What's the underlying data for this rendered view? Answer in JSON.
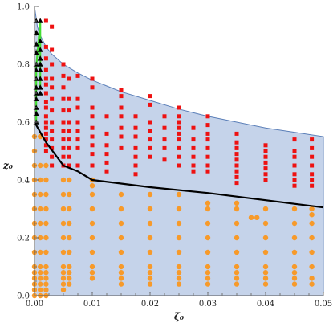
{
  "chart_data": {
    "type": "scatter",
    "title": "",
    "xlabel": "ζ₀",
    "ylabel": "z₀",
    "xlim": [
      0,
      0.05
    ],
    "ylim": [
      0,
      1
    ],
    "grid": false,
    "x_ticks": [
      "0.00",
      "0.01",
      "0.02",
      "0.03",
      "0.04",
      "0.05"
    ],
    "y_ticks": [
      "0.0",
      "0.2",
      "0.4",
      "0.6",
      "0.8",
      "1.0"
    ],
    "colors": {
      "region_fill": "#c5d3ea",
      "region_edge": "#5b7fb8",
      "red_squares": "#ee1111",
      "orange_circles": "#f79a2a",
      "black_triangles": "#000000",
      "black_curve": "#000000",
      "green_line": "#44dd33"
    },
    "region_upper_boundary": {
      "x": [
        0,
        0.0005,
        0.001,
        0.002,
        0.003,
        0.005,
        0.0075,
        0.01,
        0.0125,
        0.015,
        0.02,
        0.025,
        0.03,
        0.035,
        0.04,
        0.045,
        0.05
      ],
      "y": [
        1.0,
        0.93,
        0.9,
        0.86,
        0.835,
        0.8,
        0.77,
        0.745,
        0.725,
        0.705,
        0.675,
        0.645,
        0.62,
        0.6,
        0.58,
        0.565,
        0.55
      ]
    },
    "black_curve": {
      "x": [
        0,
        0.002,
        0.005,
        0.0075,
        0.01,
        0.02,
        0.03,
        0.04,
        0.05
      ],
      "y": [
        0.6,
        0.53,
        0.45,
        0.43,
        0.4,
        0.375,
        0.355,
        0.33,
        0.305
      ]
    },
    "green_line": {
      "x": [
        0.0003,
        0.0003,
        0.001,
        0.001
      ],
      "y": [
        0.6,
        0.79,
        0.95,
        0.72
      ]
    },
    "series": [
      {
        "name": "",
        "marker": "triangle",
        "color": "#000000",
        "x": [
          0.0003,
          0.0003,
          0.0003,
          0.0003,
          0.0003,
          0.0003,
          0.0003,
          0.0003,
          0.0003,
          0.0003,
          0.0003,
          0.0003,
          0.0003,
          0.001,
          0.001,
          0.001,
          0.001,
          0.001,
          0.001,
          0.001,
          0.001,
          0.001
        ],
        "y": [
          0.6,
          0.63,
          0.65,
          0.68,
          0.7,
          0.72,
          0.75,
          0.78,
          0.8,
          0.84,
          0.87,
          0.91,
          0.95,
          0.7,
          0.72,
          0.75,
          0.78,
          0.8,
          0.82,
          0.85,
          0.88,
          0.95
        ]
      },
      {
        "name": "",
        "marker": "square",
        "color": "#ee1111",
        "x": [
          0.002,
          0.002,
          0.002,
          0.002,
          0.002,
          0.002,
          0.002,
          0.002,
          0.002,
          0.002,
          0.002,
          0.002,
          0.002,
          0.002,
          0.002,
          0.002,
          0.003,
          0.003,
          0.003,
          0.003,
          0.003,
          0.003,
          0.003,
          0.003,
          0.003,
          0.003,
          0.003,
          0.003,
          0.003,
          0.005,
          0.005,
          0.005,
          0.005,
          0.005,
          0.005,
          0.005,
          0.005,
          0.005,
          0.005,
          0.005,
          0.006,
          0.006,
          0.006,
          0.006,
          0.006,
          0.006,
          0.006,
          0.006,
          0.006,
          0.0075,
          0.0075,
          0.0075,
          0.0075,
          0.0075,
          0.0075,
          0.0075,
          0.0075,
          0.01,
          0.01,
          0.01,
          0.01,
          0.01,
          0.01,
          0.01,
          0.01,
          0.01,
          0.0125,
          0.0125,
          0.0125,
          0.0125,
          0.0125,
          0.0125,
          0.015,
          0.015,
          0.015,
          0.015,
          0.015,
          0.015,
          0.015,
          0.0175,
          0.0175,
          0.0175,
          0.0175,
          0.0175,
          0.0175,
          0.0175,
          0.02,
          0.02,
          0.02,
          0.02,
          0.02,
          0.02,
          0.02,
          0.0225,
          0.0225,
          0.0225,
          0.0225,
          0.0225,
          0.025,
          0.025,
          0.025,
          0.025,
          0.025,
          0.025,
          0.025,
          0.025,
          0.025,
          0.0275,
          0.0275,
          0.0275,
          0.0275,
          0.0275,
          0.0275,
          0.03,
          0.03,
          0.03,
          0.03,
          0.03,
          0.03,
          0.03,
          0.03,
          0.035,
          0.035,
          0.035,
          0.035,
          0.035,
          0.035,
          0.035,
          0.035,
          0.035,
          0.04,
          0.04,
          0.04,
          0.04,
          0.04,
          0.04,
          0.04,
          0.045,
          0.045,
          0.045,
          0.045,
          0.045,
          0.045,
          0.045,
          0.048,
          0.048,
          0.048,
          0.048,
          0.048,
          0.048,
          0.048
        ],
        "y": [
          0.95,
          0.86,
          0.82,
          0.78,
          0.75,
          0.73,
          0.7,
          0.67,
          0.65,
          0.62,
          0.6,
          0.58,
          0.56,
          0.54,
          0.52,
          0.5,
          0.93,
          0.85,
          0.8,
          0.75,
          0.72,
          0.68,
          0.64,
          0.6,
          0.57,
          0.54,
          0.51,
          0.48,
          0.45,
          0.8,
          0.76,
          0.72,
          0.68,
          0.64,
          0.6,
          0.57,
          0.54,
          0.51,
          0.48,
          0.45,
          0.75,
          0.68,
          0.64,
          0.6,
          0.57,
          0.54,
          0.51,
          0.48,
          0.45,
          0.76,
          0.68,
          0.65,
          0.6,
          0.57,
          0.54,
          0.51,
          0.45,
          0.75,
          0.72,
          0.65,
          0.62,
          0.58,
          0.55,
          0.52,
          0.49,
          0.45,
          0.62,
          0.56,
          0.52,
          0.49,
          0.46,
          0.43,
          0.71,
          0.69,
          0.65,
          0.62,
          0.58,
          0.55,
          0.51,
          0.62,
          0.58,
          0.55,
          0.51,
          0.48,
          0.45,
          0.42,
          0.69,
          0.66,
          0.6,
          0.57,
          0.54,
          0.51,
          0.48,
          0.62,
          0.58,
          0.54,
          0.51,
          0.47,
          0.65,
          0.62,
          0.6,
          0.58,
          0.56,
          0.54,
          0.51,
          0.48,
          0.45,
          0.58,
          0.54,
          0.51,
          0.48,
          0.45,
          0.43,
          0.62,
          0.59,
          0.56,
          0.54,
          0.51,
          0.48,
          0.45,
          0.43,
          0.56,
          0.53,
          0.51,
          0.49,
          0.47,
          0.45,
          0.43,
          0.41,
          0.39,
          0.52,
          0.5,
          0.48,
          0.46,
          0.44,
          0.42,
          0.4,
          0.54,
          0.5,
          0.48,
          0.45,
          0.42,
          0.4,
          0.38,
          0.54,
          0.51,
          0.48,
          0.45,
          0.42,
          0.4,
          0.38
        ],
        "sizes": "small"
      },
      {
        "name": "",
        "marker": "circle",
        "color": "#f79a2a",
        "x": [
          0,
          0,
          0,
          0,
          0,
          0,
          0,
          0,
          0,
          0,
          0,
          0,
          0,
          0,
          0,
          0.001,
          0.001,
          0.001,
          0.001,
          0.001,
          0.001,
          0.001,
          0.001,
          0.001,
          0.001,
          0.001,
          0.001,
          0.001,
          0.001,
          0.002,
          0.002,
          0.002,
          0.002,
          0.002,
          0.002,
          0.002,
          0.002,
          0.002,
          0.002,
          0.002,
          0.002,
          0.002,
          0.005,
          0.005,
          0.005,
          0.005,
          0.005,
          0.005,
          0.005,
          0.005,
          0.005,
          0.005,
          0.005,
          0.006,
          0.006,
          0.006,
          0.006,
          0.006,
          0.006,
          0.006,
          0.006,
          0.006,
          0.006,
          0.01,
          0.01,
          0.01,
          0.01,
          0.01,
          0.01,
          0.01,
          0.01,
          0.01,
          0.01,
          0.015,
          0.015,
          0.015,
          0.015,
          0.015,
          0.015,
          0.015,
          0.015,
          0.015,
          0.02,
          0.02,
          0.02,
          0.02,
          0.02,
          0.02,
          0.02,
          0.02,
          0.02,
          0.025,
          0.025,
          0.025,
          0.025,
          0.025,
          0.025,
          0.025,
          0.025,
          0.025,
          0.03,
          0.03,
          0.03,
          0.03,
          0.03,
          0.03,
          0.03,
          0.03,
          0.03,
          0.035,
          0.035,
          0.035,
          0.035,
          0.035,
          0.035,
          0.035,
          0.035,
          0.035,
          0.0375,
          0.0385,
          0.04,
          0.04,
          0.04,
          0.04,
          0.04,
          0.04,
          0.04,
          0.04,
          0.045,
          0.045,
          0.045,
          0.045,
          0.045,
          0.045,
          0.045,
          0.045,
          0.048,
          0.048,
          0.048,
          0.048,
          0.048,
          0.048,
          0.048,
          0.048
        ],
        "y": [
          0.55,
          0.5,
          0.45,
          0.4,
          0.35,
          0.3,
          0.25,
          0.2,
          0.15,
          0.1,
          0.08,
          0.06,
          0.04,
          0.02,
          0.0,
          0.55,
          0.45,
          0.4,
          0.35,
          0.3,
          0.25,
          0.2,
          0.15,
          0.1,
          0.08,
          0.06,
          0.04,
          0.02,
          0.0,
          0.45,
          0.4,
          0.35,
          0.3,
          0.25,
          0.2,
          0.15,
          0.1,
          0.08,
          0.06,
          0.04,
          0.02,
          0.0,
          0.4,
          0.35,
          0.3,
          0.25,
          0.2,
          0.15,
          0.1,
          0.08,
          0.06,
          0.04,
          0.02,
          0.4,
          0.35,
          0.3,
          0.25,
          0.2,
          0.15,
          0.1,
          0.08,
          0.06,
          0.04,
          0.4,
          0.38,
          0.35,
          0.3,
          0.25,
          0.2,
          0.15,
          0.1,
          0.08,
          0.06,
          0.35,
          0.3,
          0.25,
          0.2,
          0.15,
          0.1,
          0.08,
          0.06,
          0.04,
          0.35,
          0.3,
          0.25,
          0.2,
          0.15,
          0.1,
          0.08,
          0.06,
          0.04,
          0.35,
          0.3,
          0.25,
          0.2,
          0.15,
          0.1,
          0.08,
          0.06,
          0.04,
          0.32,
          0.3,
          0.25,
          0.2,
          0.15,
          0.1,
          0.08,
          0.06,
          0.04,
          0.32,
          0.3,
          0.25,
          0.2,
          0.15,
          0.1,
          0.08,
          0.06,
          0.04,
          0.27,
          0.27,
          0.3,
          0.25,
          0.2,
          0.15,
          0.1,
          0.08,
          0.06,
          0.04,
          0.3,
          0.25,
          0.2,
          0.15,
          0.1,
          0.08,
          0.06,
          0.04,
          0.3,
          0.28,
          0.25,
          0.2,
          0.15,
          0.1,
          0.06,
          0.04
        ]
      }
    ]
  }
}
